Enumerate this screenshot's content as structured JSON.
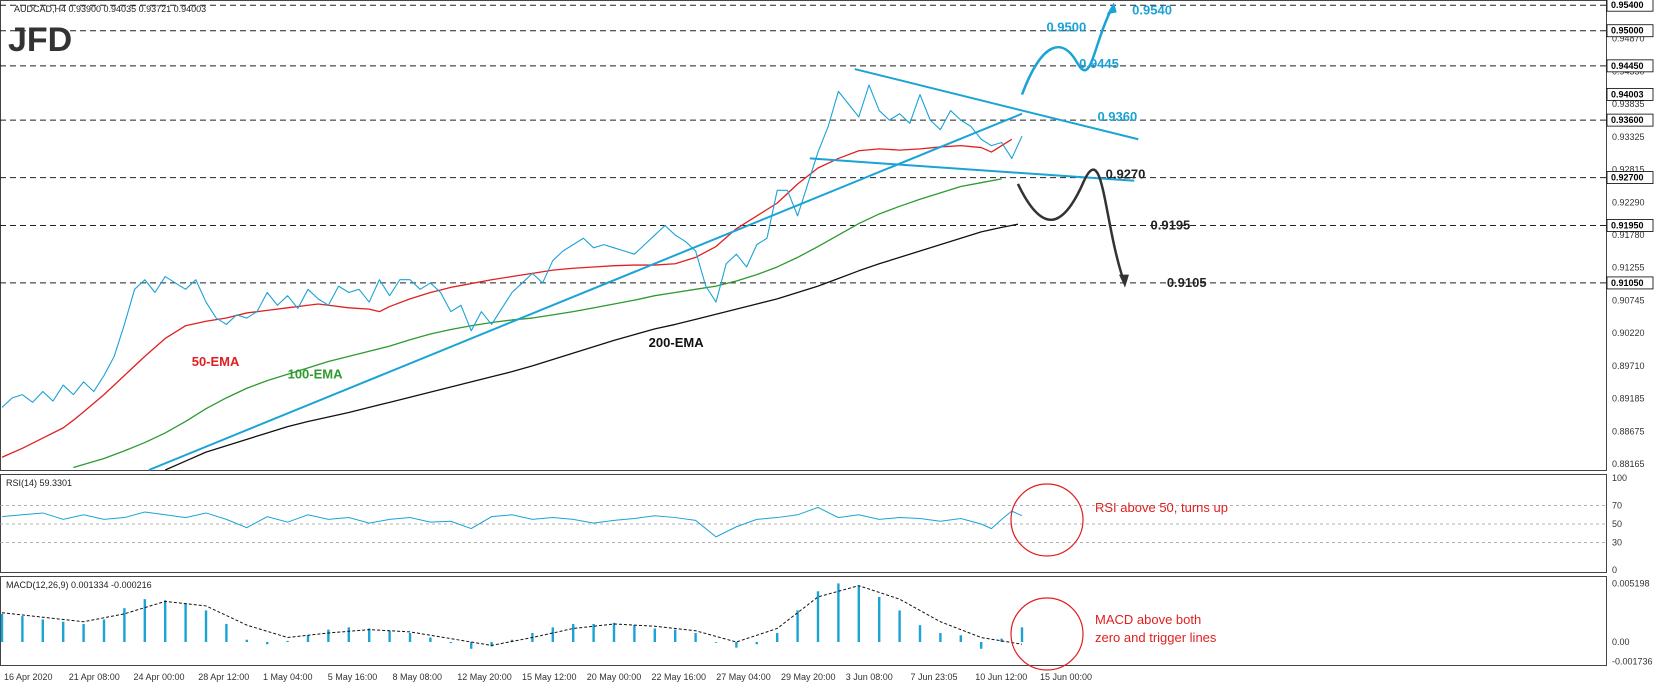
{
  "header": {
    "symbol_line": "AUDCAD,H4  0.93900 0.94035 0.93721 0.94003",
    "logo": "JFD",
    "colors": {
      "accent": "#1ba3d6",
      "bearish": "#333333",
      "ema50": "#e02020",
      "ema100": "#2e9a2e",
      "ema200": "#111111",
      "note": "#e02020"
    }
  },
  "chart_data": [
    {
      "type": "line",
      "panel": "price",
      "title": "AUDCAD,H4  0.93900 0.94035 0.93721 0.94003",
      "x_tick_labels": [
        "16 Apr 2020",
        "21 Apr 08:00",
        "24 Apr 00:00",
        "28 Apr 12:00",
        "1 May 04:00",
        "5 May 16:00",
        "8 May 08:00",
        "12 May 20:00",
        "15 May 12:00",
        "20 May 00:00",
        "22 May 16:00",
        "27 May 04:00",
        "29 May 20:00",
        "3 Jun 08:00",
        "7 Jun 23:05",
        "10 Jun 12:00",
        "15 Jun 00:00"
      ],
      "y_tick_labels": [
        "0.95400",
        "0.94870",
        "0.94350",
        "0.93835",
        "0.93325",
        "0.92815",
        "0.92290",
        "0.91780",
        "0.91255",
        "0.90745",
        "0.90220",
        "0.89710",
        "0.89185",
        "0.88675",
        "0.88165"
      ],
      "ylim": [
        0.8812,
        0.9545
      ],
      "current_price": "0.94003",
      "levels": [
        {
          "label": "0.95400",
          "value": 0.954
        },
        {
          "label": "0.95000",
          "value": 0.95
        },
        {
          "label": "0.94450",
          "value": 0.9445
        },
        {
          "label": "0.93600",
          "value": 0.936
        },
        {
          "label": "0.92700",
          "value": 0.927
        },
        {
          "label": "0.91950",
          "value": 0.9195
        },
        {
          "label": "0.91050",
          "value": 0.9105
        }
      ],
      "series": [
        {
          "name": "50-EMA",
          "color": "#e02020",
          "x": [
            0,
            10,
            20,
            30,
            35,
            40,
            50,
            60,
            70,
            80,
            90,
            100,
            110,
            120,
            130,
            140,
            150,
            155,
            160,
            170,
            180,
            185,
            190,
            200,
            210,
            215,
            220,
            230,
            240,
            250,
            260,
            270,
            280,
            290,
            300,
            310,
            320,
            330,
            340,
            350,
            360,
            370,
            380,
            390,
            400,
            410,
            420,
            430,
            440,
            450,
            460,
            470,
            480,
            485,
            490,
            495
          ],
          "y": [
            0.8832,
            0.8846,
            0.8862,
            0.8878,
            0.889,
            0.8903,
            0.893,
            0.896,
            0.899,
            0.9018,
            0.9038,
            0.9045,
            0.905,
            0.9058,
            0.9062,
            0.9066,
            0.907,
            0.9072,
            0.907,
            0.9066,
            0.9064,
            0.906,
            0.9068,
            0.908,
            0.909,
            0.9094,
            0.9098,
            0.9104,
            0.911,
            0.9115,
            0.912,
            0.9125,
            0.9128,
            0.913,
            0.9132,
            0.9133,
            0.9133,
            0.9135,
            0.9145,
            0.9162,
            0.919,
            0.921,
            0.923,
            0.926,
            0.9285,
            0.93,
            0.9312,
            0.9315,
            0.9313,
            0.9315,
            0.9318,
            0.932,
            0.9317,
            0.931,
            0.932,
            0.933
          ]
        },
        {
          "name": "100-EMA",
          "color": "#2e9a2e",
          "x": [
            35,
            50,
            60,
            70,
            80,
            90,
            100,
            110,
            120,
            130,
            140,
            150,
            160,
            170,
            180,
            190,
            200,
            210,
            220,
            230,
            240,
            250,
            260,
            270,
            280,
            290,
            300,
            310,
            320,
            330,
            340,
            350,
            360,
            370,
            380,
            390,
            400,
            410,
            420,
            430,
            440,
            450,
            460,
            470,
            480,
            490
          ],
          "y": [
            0.8816,
            0.883,
            0.8842,
            0.8855,
            0.887,
            0.8888,
            0.8908,
            0.8925,
            0.894,
            0.8952,
            0.8962,
            0.8972,
            0.8982,
            0.899,
            0.8998,
            0.9006,
            0.9016,
            0.9025,
            0.9032,
            0.9038,
            0.9043,
            0.9047,
            0.905,
            0.9055,
            0.906,
            0.9066,
            0.9072,
            0.9078,
            0.9085,
            0.909,
            0.9095,
            0.91,
            0.9108,
            0.9118,
            0.913,
            0.9145,
            0.9162,
            0.918,
            0.9198,
            0.9213,
            0.9225,
            0.9236,
            0.9246,
            0.9256,
            0.9262,
            0.9268
          ]
        },
        {
          "name": "200-EMA",
          "color": "#111111",
          "x": [
            80,
            90,
            100,
            110,
            120,
            130,
            140,
            150,
            160,
            170,
            180,
            190,
            200,
            210,
            220,
            230,
            240,
            250,
            260,
            270,
            280,
            290,
            300,
            310,
            320,
            330,
            340,
            350,
            360,
            370,
            380,
            390,
            400,
            410,
            420,
            430,
            440,
            450,
            460,
            470,
            480,
            490,
            498
          ],
          "y": [
            0.8812,
            0.8826,
            0.884,
            0.885,
            0.886,
            0.887,
            0.888,
            0.8888,
            0.8895,
            0.8902,
            0.891,
            0.8918,
            0.8926,
            0.8934,
            0.8942,
            0.895,
            0.8958,
            0.8966,
            0.8975,
            0.8985,
            0.8995,
            0.9005,
            0.9015,
            0.9024,
            0.9033,
            0.904,
            0.9048,
            0.9056,
            0.9064,
            0.9072,
            0.908,
            0.909,
            0.91,
            0.9112,
            0.9124,
            0.9135,
            0.9145,
            0.9155,
            0.9165,
            0.9175,
            0.9185,
            0.9192,
            0.9197
          ]
        },
        {
          "name": "Price",
          "color": "#1ba3d6",
          "x": [
            0,
            5,
            10,
            15,
            20,
            25,
            30,
            35,
            40,
            45,
            50,
            55,
            60,
            65,
            70,
            75,
            80,
            85,
            90,
            95,
            100,
            105,
            110,
            115,
            120,
            125,
            130,
            135,
            140,
            145,
            150,
            155,
            160,
            165,
            170,
            175,
            180,
            185,
            190,
            195,
            200,
            205,
            210,
            215,
            220,
            225,
            230,
            235,
            240,
            245,
            250,
            255,
            260,
            265,
            270,
            275,
            280,
            285,
            290,
            295,
            300,
            305,
            310,
            315,
            320,
            325,
            330,
            335,
            340,
            345,
            350,
            355,
            360,
            365,
            370,
            375,
            380,
            385,
            390,
            395,
            400,
            405,
            410,
            415,
            420,
            425,
            430,
            435,
            440,
            445,
            450,
            455,
            460,
            465,
            470,
            475,
            480,
            485,
            490,
            495,
            500
          ],
          "y": [
            0.891,
            0.8925,
            0.893,
            0.8918,
            0.8935,
            0.892,
            0.8945,
            0.893,
            0.895,
            0.8935,
            0.896,
            0.899,
            0.904,
            0.9095,
            0.911,
            0.909,
            0.9115,
            0.9105,
            0.9095,
            0.911,
            0.9075,
            0.905,
            0.904,
            0.9055,
            0.905,
            0.906,
            0.909,
            0.907,
            0.9085,
            0.9065,
            0.9095,
            0.908,
            0.907,
            0.91,
            0.909,
            0.9095,
            0.9075,
            0.911,
            0.9085,
            0.911,
            0.911,
            0.9095,
            0.9105,
            0.909,
            0.906,
            0.907,
            0.903,
            0.906,
            0.904,
            0.9065,
            0.909,
            0.9105,
            0.912,
            0.9105,
            0.914,
            0.9155,
            0.9165,
            0.9175,
            0.916,
            0.9165,
            0.916,
            0.9155,
            0.915,
            0.9165,
            0.918,
            0.9195,
            0.918,
            0.917,
            0.9155,
            0.91,
            0.9075,
            0.9135,
            0.915,
            0.913,
            0.9165,
            0.9175,
            0.925,
            0.925,
            0.921,
            0.926,
            0.931,
            0.935,
            0.9405,
            0.9385,
            0.9365,
            0.9415,
            0.9375,
            0.936,
            0.937,
            0.9355,
            0.94,
            0.936,
            0.9345,
            0.9375,
            0.936,
            0.935,
            0.933,
            0.932,
            0.9325,
            0.93,
            0.9335
          ]
        }
      ],
      "pattern_lines": [
        {
          "name": "uptrend",
          "from": [
            72,
            0.8812
          ],
          "to": [
            500,
            0.937
          ]
        },
        {
          "name": "channel-upper",
          "from": [
            418,
            0.944
          ],
          "to": [
            557,
            0.933
          ]
        },
        {
          "name": "channel-lower",
          "from": [
            396,
            0.93
          ],
          "to": [
            555,
            0.9265
          ]
        }
      ],
      "annotations_bullish": [
        {
          "label": "0.9500",
          "x": 512,
          "y": 0.9505
        },
        {
          "label": "0.9540",
          "x": 554,
          "y": 0.9532
        },
        {
          "label": "0.9445",
          "x": 528,
          "y": 0.9448
        },
        {
          "label": "0.9360",
          "x": 537,
          "y": 0.9365
        }
      ],
      "annotations_bearish": [
        {
          "label": "0.9270",
          "x": 541,
          "y": 0.9275
        },
        {
          "label": "0.9195",
          "x": 563,
          "y": 0.9195
        },
        {
          "label": "0.9105",
          "x": 571,
          "y": 0.9105
        }
      ],
      "ema_labels": [
        {
          "label": "50-EMA",
          "x": 93,
          "y": 0.8975,
          "color": "#e02020"
        },
        {
          "label": "100-EMA",
          "x": 140,
          "y": 0.8955,
          "color": "#2e9a2e"
        },
        {
          "label": "200-EMA",
          "x": 317,
          "y": 0.9005,
          "color": "#111111"
        }
      ]
    },
    {
      "type": "line",
      "panel": "rsi",
      "title": "RSI(14) 59.3301",
      "y_tick_labels": [
        "100",
        "70",
        "50",
        "30",
        "0"
      ],
      "ylim": [
        0,
        100
      ],
      "levels": [
        70,
        50,
        30
      ],
      "series": [
        {
          "name": "RSI(14)",
          "color": "#1ba3d6",
          "x": [
            0,
            10,
            20,
            30,
            40,
            50,
            60,
            70,
            80,
            90,
            100,
            110,
            120,
            130,
            140,
            150,
            160,
            170,
            180,
            190,
            200,
            210,
            220,
            230,
            240,
            250,
            260,
            270,
            280,
            290,
            300,
            310,
            320,
            330,
            340,
            350,
            360,
            370,
            380,
            390,
            400,
            410,
            420,
            430,
            440,
            450,
            460,
            470,
            480,
            485,
            490,
            495,
            500
          ],
          "y": [
            58,
            60,
            62,
            55,
            60,
            55,
            57,
            63,
            60,
            57,
            62,
            55,
            46,
            58,
            52,
            60,
            55,
            57,
            51,
            55,
            57,
            52,
            53,
            45,
            58,
            60,
            55,
            57,
            55,
            51,
            54,
            56,
            59,
            57,
            54,
            36,
            47,
            55,
            57,
            60,
            68,
            57,
            60,
            55,
            57,
            56,
            53,
            56,
            50,
            45,
            55,
            64,
            59
          ]
        }
      ],
      "annotation": "RSI above 50, turns up"
    },
    {
      "type": "bar",
      "panel": "macd",
      "title": "MACD(12,26,9) 0.001334 -0.000216",
      "y_tick_labels": [
        "0.005198",
        "0.00",
        "-0.001736"
      ],
      "ylim": [
        -0.00195,
        0.0055
      ],
      "series": [
        {
          "name": "MACD(12,26,9)",
          "color": "#1ba3d6",
          "x": [
            0,
            10,
            20,
            30,
            40,
            50,
            60,
            70,
            80,
            90,
            100,
            110,
            120,
            130,
            140,
            150,
            160,
            170,
            180,
            190,
            200,
            210,
            220,
            230,
            240,
            250,
            260,
            270,
            280,
            290,
            300,
            310,
            320,
            330,
            340,
            350,
            360,
            370,
            380,
            390,
            400,
            410,
            420,
            430,
            440,
            450,
            460,
            470,
            480,
            490,
            500
          ],
          "y": [
            0.0025,
            0.0023,
            0.002,
            0.0018,
            0.0016,
            0.002,
            0.003,
            0.0038,
            0.0037,
            0.0034,
            0.0028,
            0.0016,
            0.0002,
            -0.0002,
            0.0001,
            0.0006,
            0.0011,
            0.0013,
            0.0012,
            0.001,
            0.0008,
            0.0004,
            -0.0001,
            -0.0006,
            -0.0004,
            0.0002,
            0.0008,
            0.0013,
            0.0016,
            0.0016,
            0.0017,
            0.0015,
            0.0012,
            0.0011,
            0.0008,
            0.0,
            -0.0005,
            -0.0002,
            0.0008,
            0.0028,
            0.0045,
            0.0052,
            0.005,
            0.004,
            0.0028,
            0.0015,
            0.0008,
            0.0006,
            -0.0006,
            0.0003,
            0.0013
          ]
        },
        {
          "name": "Signal",
          "color": "#111111",
          "x": [
            0,
            20,
            40,
            60,
            80,
            100,
            120,
            140,
            160,
            180,
            200,
            220,
            240,
            260,
            280,
            300,
            320,
            340,
            360,
            380,
            400,
            420,
            440,
            460,
            480,
            500
          ],
          "y": [
            0.0026,
            0.0022,
            0.0018,
            0.0025,
            0.0036,
            0.0032,
            0.0015,
            0.0004,
            0.0008,
            0.0011,
            0.0009,
            0.0003,
            -0.0003,
            0.0004,
            0.0012,
            0.0016,
            0.0014,
            0.001,
            0.0,
            0.0012,
            0.004,
            0.005,
            0.0038,
            0.0018,
            0.0004,
            -0.0002
          ]
        }
      ],
      "annotation_lines": [
        "MACD above both",
        "zero and trigger lines"
      ]
    }
  ]
}
